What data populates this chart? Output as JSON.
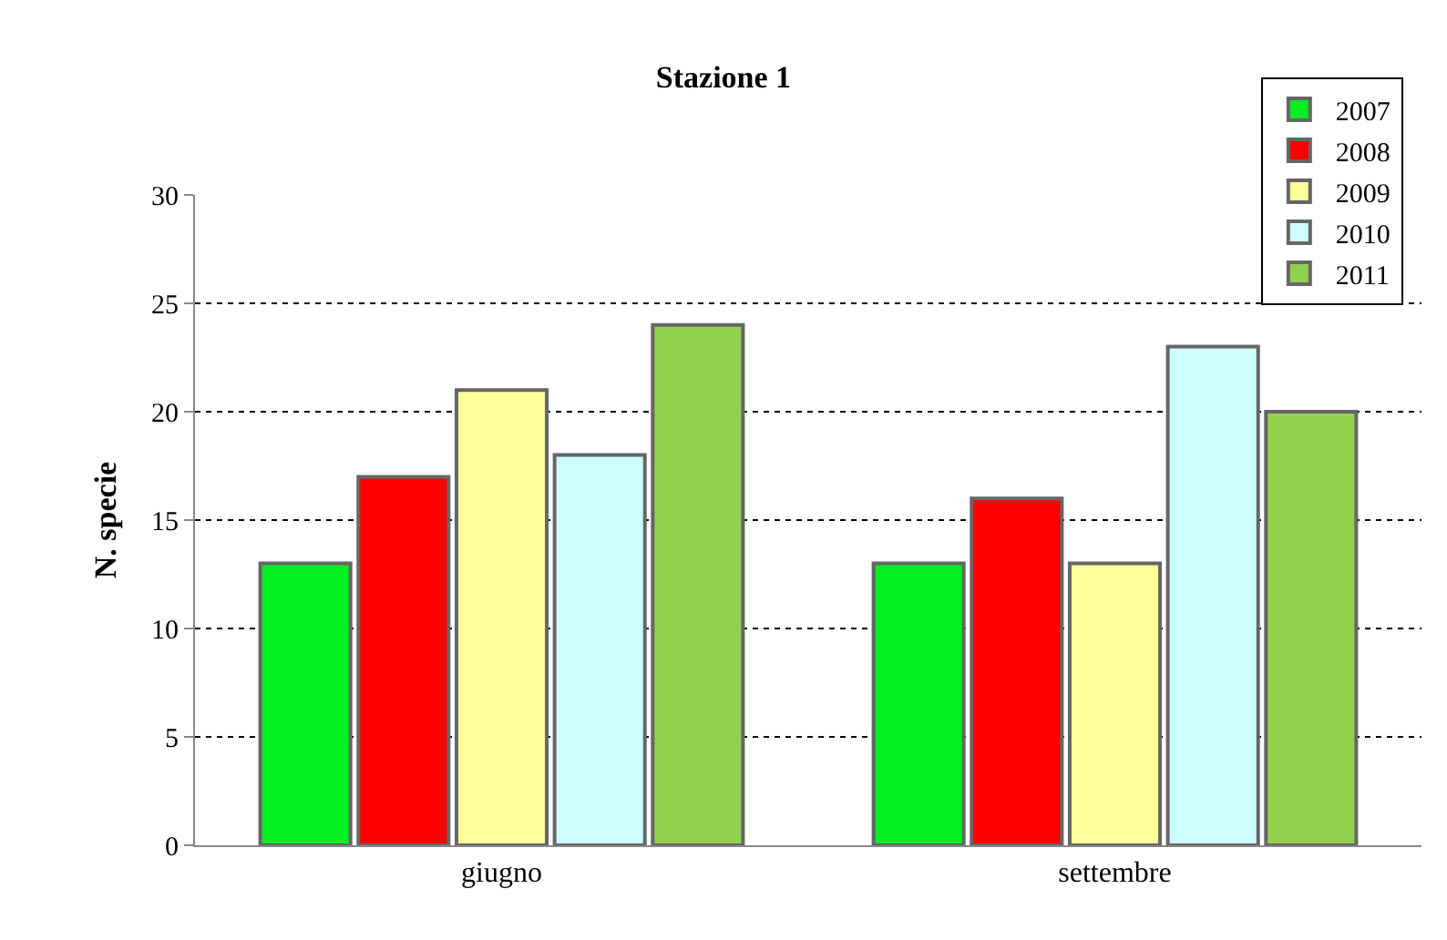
{
  "chart_data": {
    "type": "bar",
    "title": "Stazione 1",
    "ylabel": "N. specie",
    "categories": [
      "giugno",
      "settembre"
    ],
    "series": [
      {
        "name": "2007",
        "color": "#00ee22",
        "values": [
          13,
          13
        ]
      },
      {
        "name": "2008",
        "color": "#ff0000",
        "values": [
          17,
          16
        ]
      },
      {
        "name": "2009",
        "color": "#ffff99",
        "values": [
          21,
          13
        ]
      },
      {
        "name": "2010",
        "color": "#ccffff",
        "values": [
          18,
          23
        ]
      },
      {
        "name": "2011",
        "color": "#92d050",
        "values": [
          24,
          20
        ]
      }
    ],
    "ylim": [
      0,
      30
    ],
    "yticks": [
      0,
      5,
      10,
      15,
      20,
      25,
      30
    ],
    "grid": "y",
    "legend": "top right"
  }
}
